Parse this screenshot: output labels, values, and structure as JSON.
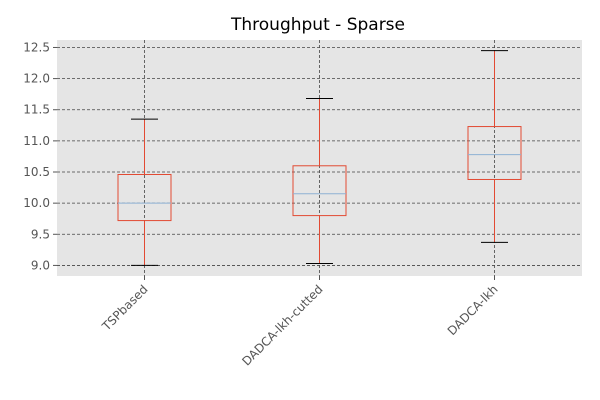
{
  "chart_data": {
    "type": "boxplot",
    "title": "Throughput - Sparse",
    "xlabel": "",
    "ylabel": "",
    "categories": [
      "TSPbased",
      "DADCA-lkh-cutted",
      "DADCA-lkh"
    ],
    "boxes": [
      {
        "whisker_low": 9.0,
        "q1": 9.72,
        "median": 10.0,
        "q3": 10.46,
        "whisker_high": 11.35
      },
      {
        "whisker_low": 9.03,
        "q1": 9.8,
        "median": 10.15,
        "q3": 10.6,
        "whisker_high": 11.68
      },
      {
        "whisker_low": 9.37,
        "q1": 10.38,
        "median": 10.78,
        "q3": 11.23,
        "whisker_high": 12.45
      }
    ],
    "ylim": [
      8.83,
      12.62
    ],
    "yticks": [
      "9.0",
      "9.5",
      "10.0",
      "10.5",
      "11.0",
      "11.5",
      "12.0",
      "12.5"
    ],
    "grid": true,
    "colors": {
      "background": "#e5e5e5",
      "grid": "#444444",
      "box": "#e24a33",
      "whisker": "#e24a33",
      "cap": "#000000",
      "median": "#8eb1d4"
    }
  }
}
